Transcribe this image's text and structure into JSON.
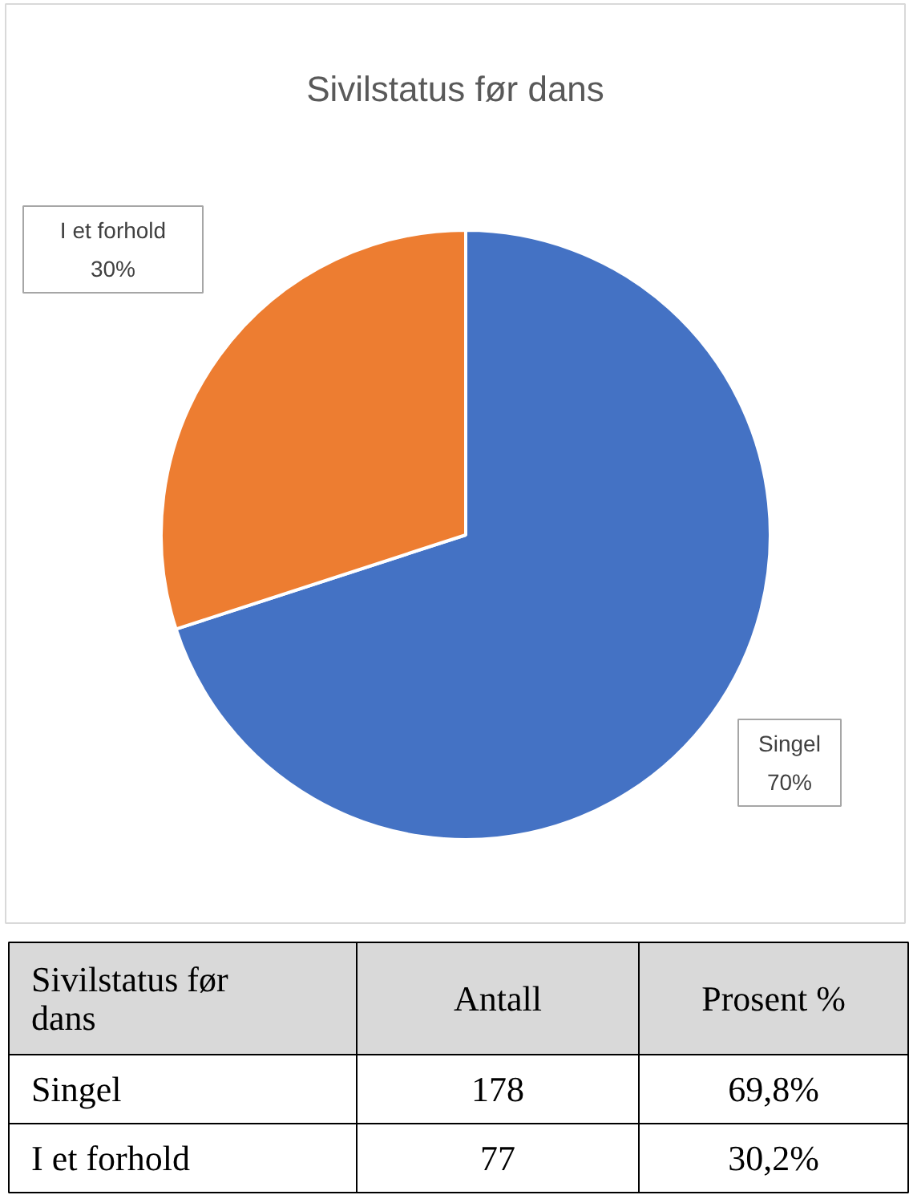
{
  "chart_data": {
    "type": "pie",
    "title": "Sivilstatus før dans",
    "categories": [
      "Singel",
      "I et forhold"
    ],
    "values": [
      70,
      30
    ],
    "colors": [
      "#4472c4",
      "#ed7d31"
    ],
    "value_labels": [
      "70%",
      "30%"
    ],
    "annotations": [
      "Sivilstatus før dans",
      "Antall",
      "Prosent %",
      "178",
      "69,8%",
      "77",
      "30,2%"
    ]
  }
}
